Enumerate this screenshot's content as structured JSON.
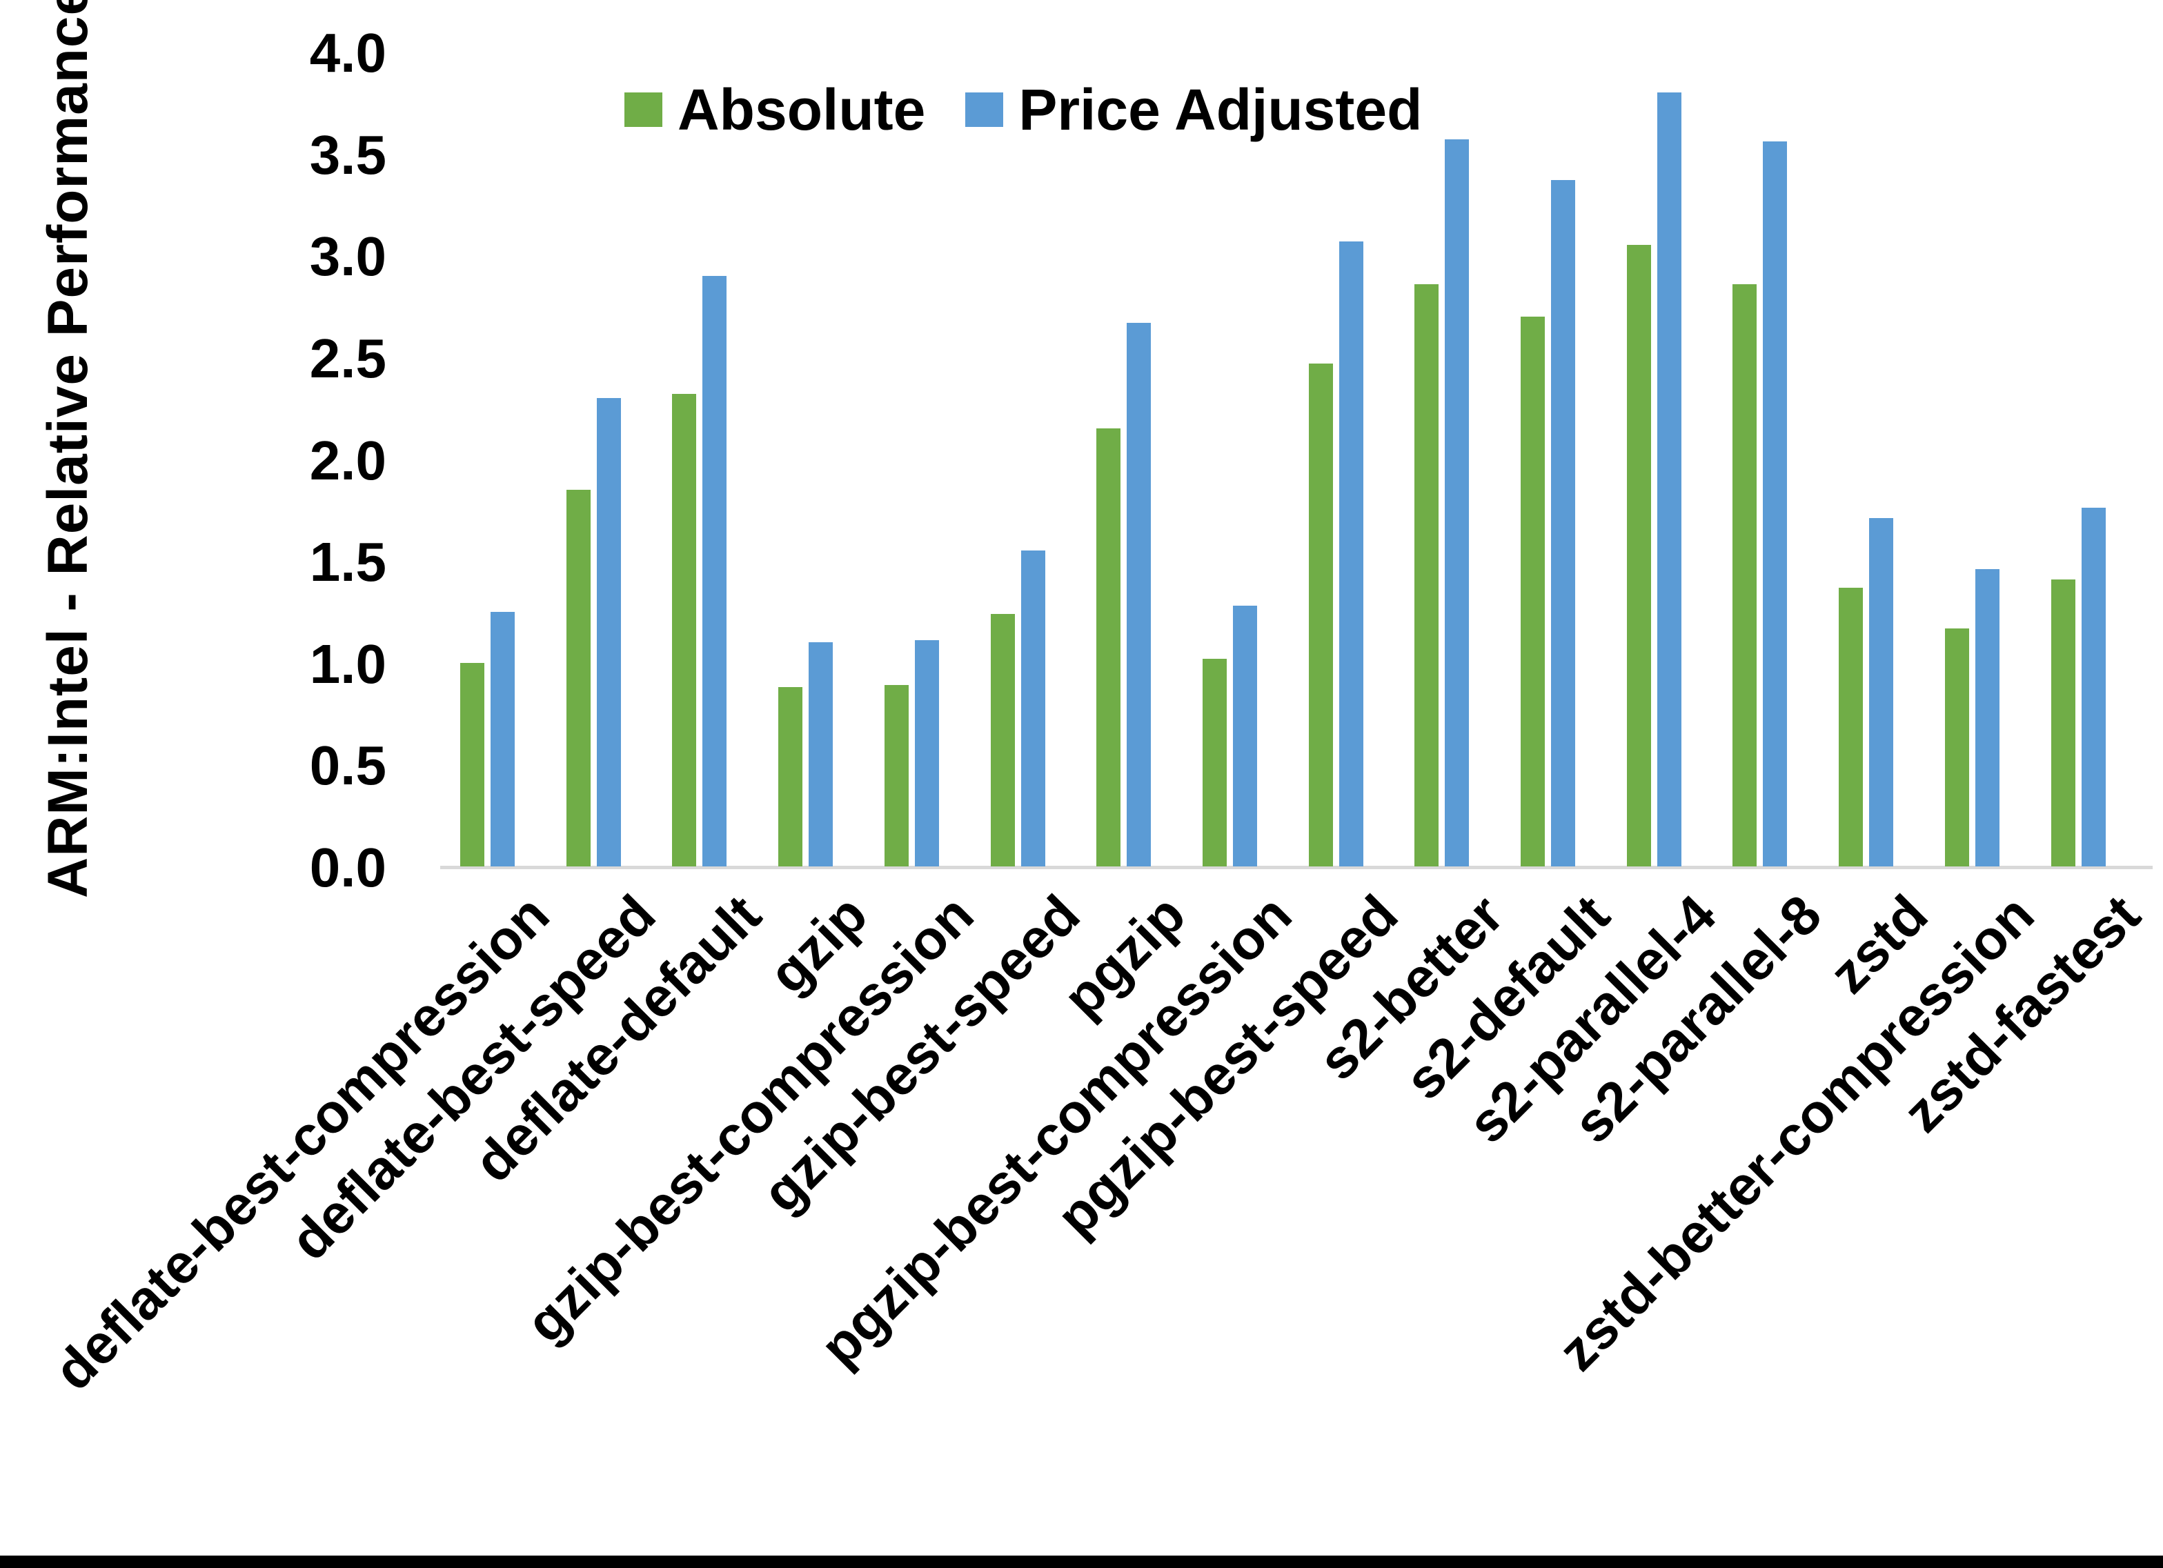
{
  "chart_data": {
    "type": "bar",
    "title": "",
    "xlabel": "",
    "ylabel": "ARM:Intel - Relative Performance",
    "ylim": [
      0.0,
      4.0
    ],
    "y_tick_step": 0.5,
    "y_ticks": [
      "0.0",
      "0.5",
      "1.0",
      "1.5",
      "2.0",
      "2.5",
      "3.0",
      "3.5",
      "4.0"
    ],
    "grid": false,
    "legend_position": "top-center",
    "categories": [
      "deflate-best-compression",
      "deflate-best-speed",
      "deflate-default",
      "gzip",
      "gzip-best-compression",
      "gzip-best-speed",
      "pgzip",
      "pgzip-best-compression",
      "pgzip-best-speed",
      "s2-better",
      "s2-default",
      "s2-parallel-4",
      "s2-parallel-8",
      "zstd",
      "zstd-better-compression",
      "zstd-fastest"
    ],
    "series": [
      {
        "name": "Absolute",
        "color": "#70AD47",
        "values": [
          1.0,
          1.85,
          2.32,
          0.88,
          0.89,
          1.24,
          2.15,
          1.02,
          2.47,
          2.86,
          2.7,
          3.05,
          2.86,
          1.37,
          1.17,
          1.41
        ]
      },
      {
        "name": "Price Adjusted",
        "color": "#5B9BD5",
        "values": [
          1.25,
          2.3,
          2.9,
          1.1,
          1.11,
          1.55,
          2.67,
          1.28,
          3.07,
          3.57,
          3.37,
          3.8,
          3.56,
          1.71,
          1.46,
          1.76
        ]
      }
    ]
  },
  "colors": {
    "axis_line": "#D9D9D9",
    "text": "#000000",
    "background": "#FFFFFF",
    "bottom_bar": "#000000"
  }
}
